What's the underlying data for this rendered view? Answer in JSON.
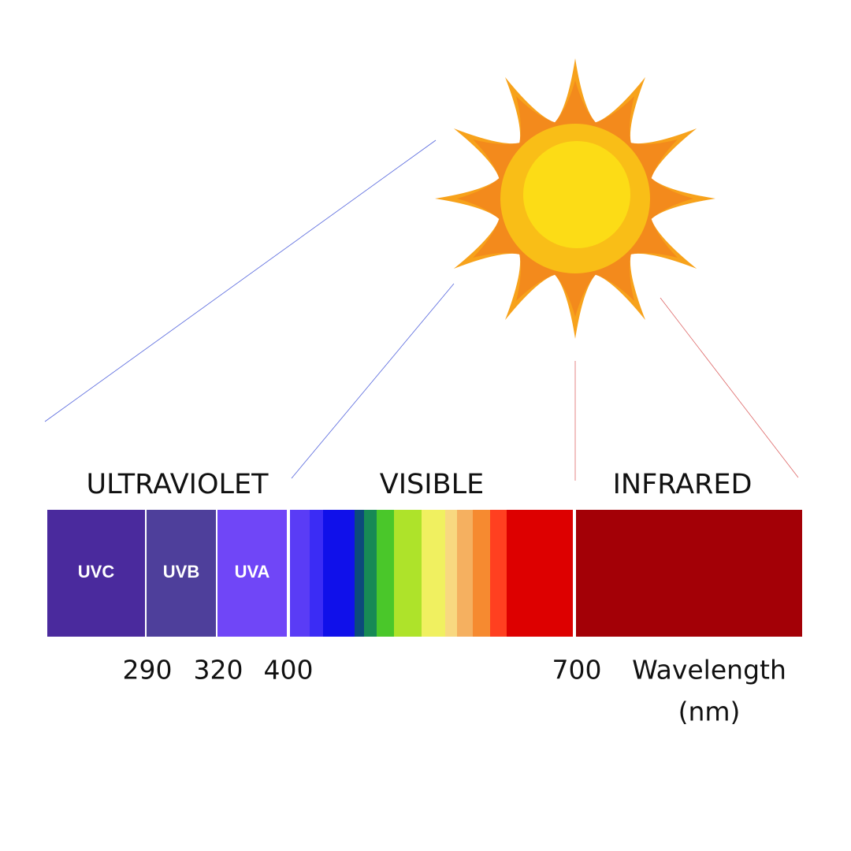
{
  "regions": [
    "ULTRAVIOLET",
    "VISIBLE",
    "INFRARED"
  ],
  "uv_bands": [
    "UVC",
    "UVB",
    "UVA"
  ],
  "wavelength_marks": [
    290,
    320,
    400,
    700
  ],
  "axis_label": {
    "name": "Wavelength",
    "unit": "(nm)"
  }
}
